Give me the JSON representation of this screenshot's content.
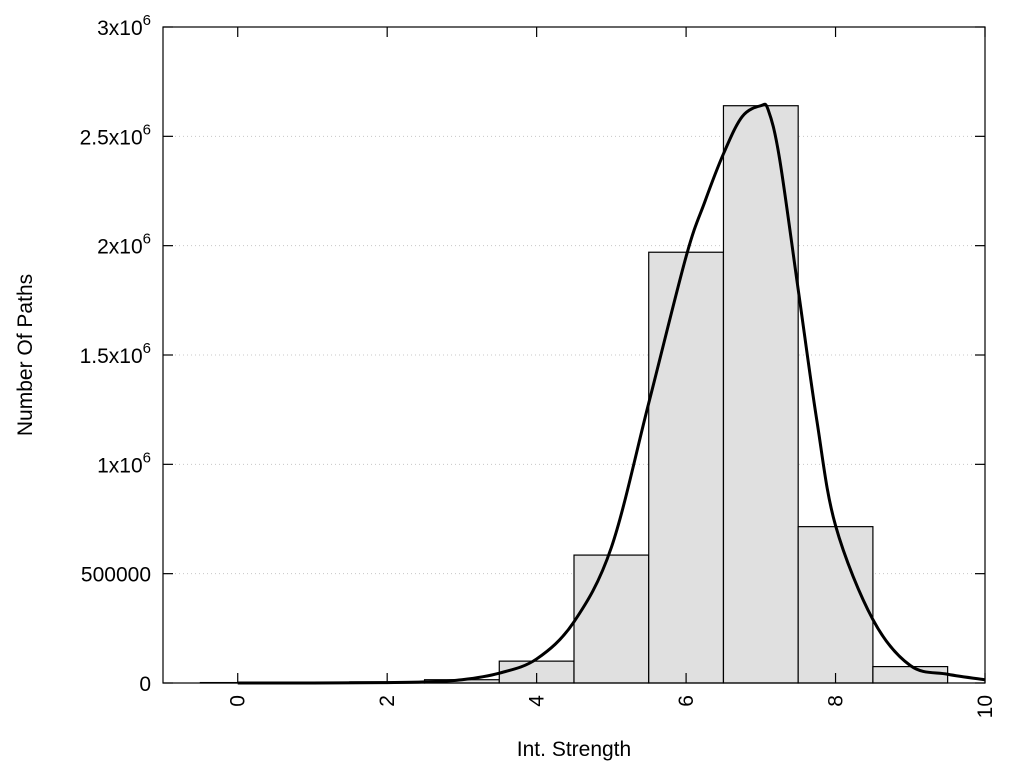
{
  "chart_data": {
    "type": "bar",
    "xlabel": "Int. Strength",
    "ylabel": "Number Of Paths",
    "xlim": [
      -1,
      10
    ],
    "ylim": [
      0,
      3000000
    ],
    "x_ticks": [
      {
        "value": 0,
        "label": "0"
      },
      {
        "value": 2,
        "label": "2"
      },
      {
        "value": 4,
        "label": "4"
      },
      {
        "value": 6,
        "label": "6"
      },
      {
        "value": 8,
        "label": "8"
      },
      {
        "value": 10,
        "label": "10"
      }
    ],
    "y_ticks": [
      {
        "value": 0,
        "base": "0",
        "exp": ""
      },
      {
        "value": 500000,
        "base": "500000",
        "exp": ""
      },
      {
        "value": 1000000,
        "base": "1x10",
        "exp": "6"
      },
      {
        "value": 1500000,
        "base": "1.5x10",
        "exp": "6"
      },
      {
        "value": 2000000,
        "base": "2x10",
        "exp": "6"
      },
      {
        "value": 2500000,
        "base": "2.5x10",
        "exp": "6"
      },
      {
        "value": 3000000,
        "base": "3x10",
        "exp": "6"
      }
    ],
    "grid": {
      "y": true,
      "x": false
    },
    "bin_width": 1,
    "histogram": {
      "centers": [
        0,
        1,
        2,
        3,
        4,
        5,
        6,
        7,
        8,
        9
      ],
      "values": [
        2000,
        3000,
        5000,
        15000,
        100000,
        585000,
        1970000,
        2640000,
        715000,
        75000
      ]
    },
    "fit_curve": {
      "x": [
        0,
        1,
        2,
        2.5,
        3,
        3.5,
        4,
        4.5,
        5,
        5.5,
        6,
        6.25,
        6.5,
        6.75,
        7,
        7.1,
        7.25,
        7.5,
        7.75,
        8,
        8.5,
        9,
        9.5,
        10
      ],
      "y": [
        0,
        0,
        2000,
        5000,
        15000,
        45000,
        110000,
        280000,
        620000,
        1280000,
        1950000,
        2200000,
        2420000,
        2590000,
        2640000,
        2620000,
        2400000,
        1800000,
        1200000,
        720000,
        290000,
        80000,
        40000,
        15000
      ]
    }
  }
}
